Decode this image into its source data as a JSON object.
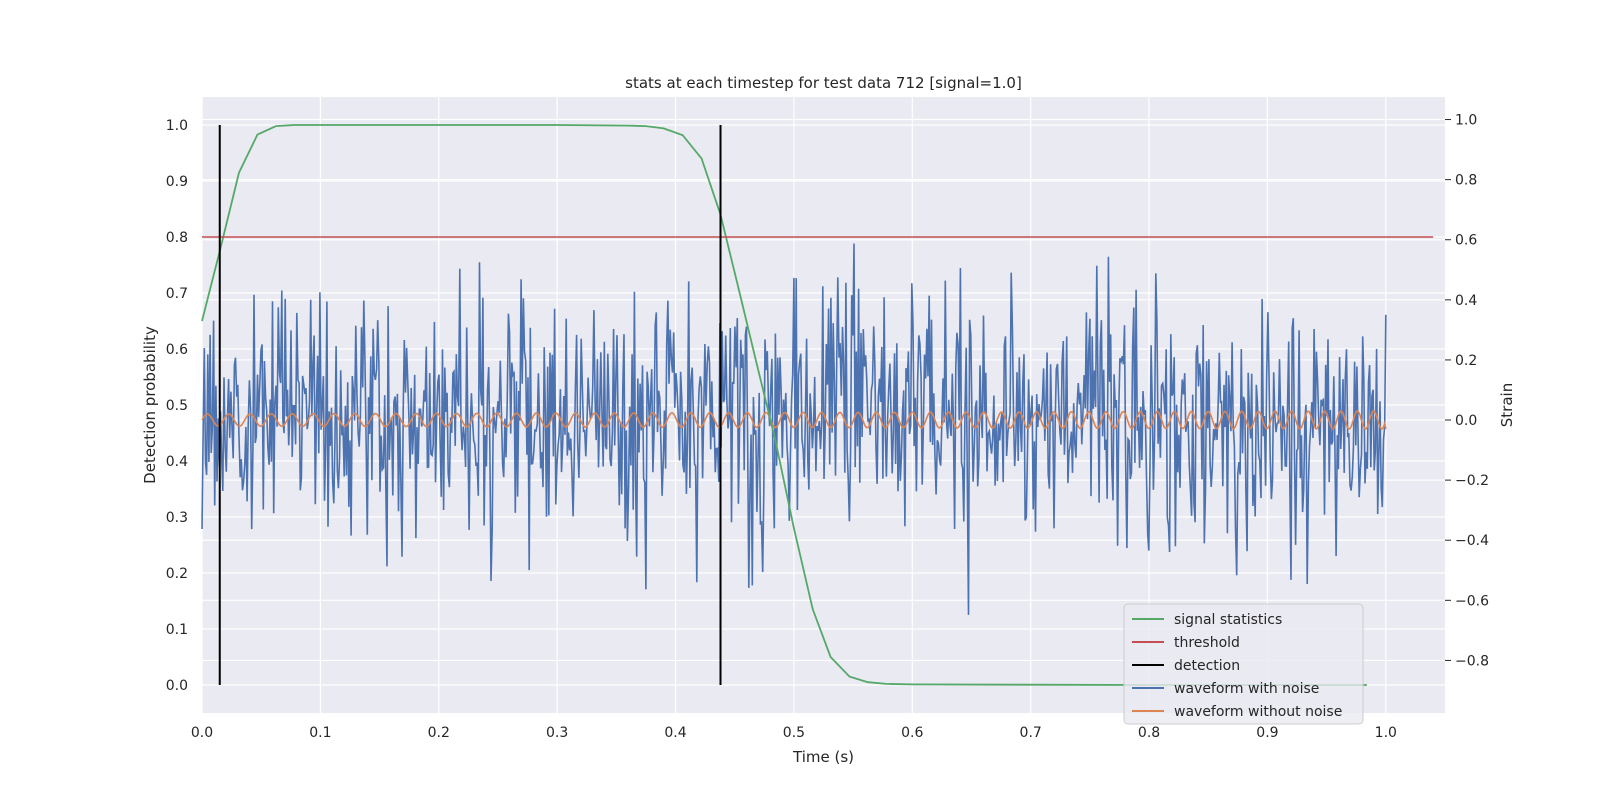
{
  "chart_data": {
    "type": "line",
    "title": "stats at each timestep for test data 712 [signal=1.0]",
    "xlabel": "Time (s)",
    "ylabel": "Detection probability",
    "ylabel_right": "Strain",
    "xlim": [
      0.0,
      1.05
    ],
    "ylim": [
      -0.05,
      1.05
    ],
    "ylim_right": [
      -0.975,
      1.075
    ],
    "x_ticks": [
      0.0,
      0.1,
      0.2,
      0.3,
      0.4,
      0.5,
      0.6,
      0.7,
      0.8,
      0.9,
      1.0
    ],
    "y_ticks": [
      0.0,
      0.1,
      0.2,
      0.3,
      0.4,
      0.5,
      0.6,
      0.7,
      0.8,
      0.9,
      1.0
    ],
    "y_ticks_right": [
      -0.8,
      -0.6,
      -0.4,
      -0.2,
      0.0,
      0.2,
      0.4,
      0.6,
      0.8,
      1.0
    ],
    "x_tick_labels": [
      "0.0",
      "0.1",
      "0.2",
      "0.3",
      "0.4",
      "0.5",
      "0.6",
      "0.7",
      "0.8",
      "0.9",
      "1.0"
    ],
    "y_tick_labels": [
      "0.0",
      "0.1",
      "0.2",
      "0.3",
      "0.4",
      "0.5",
      "0.6",
      "0.7",
      "0.8",
      "0.9",
      "1.0"
    ],
    "y_tick_labels_right": [
      "−0.8",
      "−0.6",
      "−0.4",
      "−0.2",
      "0.0",
      "0.2",
      "0.4",
      "0.6",
      "0.8",
      "1.0"
    ],
    "grid": true,
    "legend_position": "bottom-right",
    "threshold": 0.8,
    "detections": [
      0.015,
      0.438
    ],
    "series": [
      {
        "name": "signal statistics",
        "axis": "left",
        "color": "#55a868",
        "x": [
          0.0,
          0.0156,
          0.03125,
          0.0469,
          0.0625,
          0.078,
          0.1,
          0.2,
          0.3,
          0.36,
          0.375,
          0.39,
          0.406,
          0.422,
          0.438,
          0.453,
          0.469,
          0.484,
          0.5,
          0.516,
          0.531,
          0.547,
          0.5625,
          0.578,
          0.6,
          0.7,
          0.8,
          0.9,
          0.984
        ],
        "y": [
          0.65,
          0.78,
          0.915,
          0.983,
          0.998,
          1.0,
          1.0,
          1.0,
          1.0,
          0.999,
          0.998,
          0.994,
          0.982,
          0.94,
          0.84,
          0.71,
          0.57,
          0.44,
          0.28,
          0.135,
          0.05,
          0.015,
          0.005,
          0.002,
          0.001,
          0.0005,
          0.0,
          0.0,
          0.0
        ]
      },
      {
        "name": "threshold",
        "axis": "left",
        "color": "#c44e52",
        "x": [
          0.0,
          1.04
        ],
        "y": [
          0.8,
          0.8
        ]
      },
      {
        "name": "detection",
        "axis": "left",
        "color": "#000000",
        "x": [
          0.015,
          0.438
        ],
        "y": [
          1.0,
          1.0
        ]
      },
      {
        "name": "waveform with noise",
        "axis": "right",
        "color": "#4c72b0",
        "x": [
          0.0,
          1.0
        ],
        "y": [
          0.0,
          0.35
        ]
      },
      {
        "name": "waveform without noise",
        "axis": "right",
        "color": "#dd8452",
        "x": [
          0.0,
          1.0
        ],
        "y": [
          0.0,
          -0.03
        ]
      }
    ],
    "colors": {
      "background": "#eaeaf2",
      "grid": "#ffffff"
    }
  }
}
